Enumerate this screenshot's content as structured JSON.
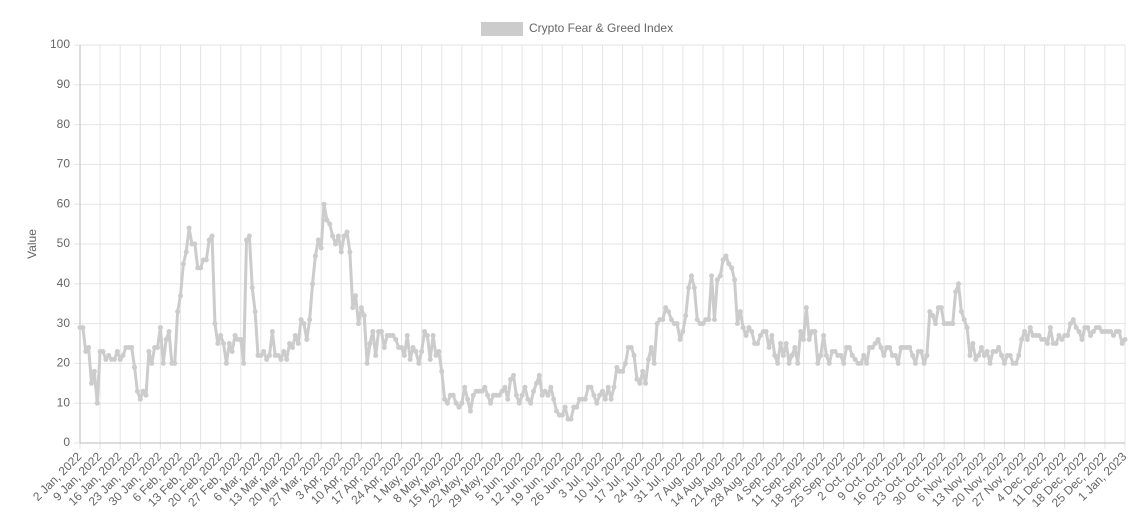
{
  "chart_data": {
    "type": "line",
    "y_label": "Value",
    "categories": [
      "2 Jan, 2022",
      null,
      null,
      null,
      null,
      null,
      null,
      "9 Jan, 2022",
      null,
      null,
      null,
      null,
      null,
      null,
      "16 Jan, 2022",
      null,
      null,
      null,
      null,
      null,
      null,
      "23 Jan, 2022",
      null,
      null,
      null,
      null,
      null,
      null,
      "30 Jan, 2022",
      null,
      null,
      null,
      null,
      null,
      null,
      "6 Feb, 2022",
      null,
      null,
      null,
      null,
      null,
      null,
      "13 Feb, 2022",
      null,
      null,
      null,
      null,
      null,
      null,
      "20 Feb, 2022",
      null,
      null,
      null,
      null,
      null,
      null,
      "27 Feb, 2022",
      null,
      null,
      null,
      null,
      null,
      null,
      "6 Mar, 2022",
      null,
      null,
      null,
      null,
      null,
      null,
      "13 Mar, 2022",
      null,
      null,
      null,
      null,
      null,
      null,
      "20 Mar, 2022",
      null,
      null,
      null,
      null,
      null,
      null,
      "27 Mar, 2022",
      null,
      null,
      null,
      null,
      null,
      null,
      "3 Apr, 2022",
      null,
      null,
      null,
      null,
      null,
      null,
      "10 Apr, 2022",
      null,
      null,
      null,
      null,
      null,
      null,
      "17 Apr, 2022",
      null,
      null,
      null,
      null,
      null,
      null,
      "24 Apr, 2022",
      null,
      null,
      null,
      null,
      null,
      null,
      "1 May, 2022",
      null,
      null,
      null,
      null,
      null,
      null,
      "8 May, 2022",
      null,
      null,
      null,
      null,
      null,
      null,
      "15 May, 2022",
      null,
      null,
      null,
      null,
      null,
      null,
      "22 May, 2022",
      null,
      null,
      null,
      null,
      null,
      null,
      "29 May, 2022",
      null,
      null,
      null,
      null,
      null,
      null,
      "5 Jun, 2022",
      null,
      null,
      null,
      null,
      null,
      null,
      "12 Jun, 2022",
      null,
      null,
      null,
      null,
      null,
      null,
      "19 Jun, 2022",
      null,
      null,
      null,
      null,
      null,
      null,
      "26 Jun, 2022",
      null,
      null,
      null,
      null,
      null,
      null,
      "3 Jul, 2022",
      null,
      null,
      null,
      null,
      null,
      null,
      "10 Jul, 2022",
      null,
      null,
      null,
      null,
      null,
      null,
      "17 Jul, 2022",
      null,
      null,
      null,
      null,
      null,
      null,
      "24 Jul, 2022",
      null,
      null,
      null,
      null,
      null,
      null,
      "31 Jul, 2022",
      null,
      null,
      null,
      null,
      null,
      null,
      "7 Aug, 2022",
      null,
      null,
      null,
      null,
      null,
      null,
      "14 Aug, 2022",
      null,
      null,
      null,
      null,
      null,
      null,
      "21 Aug, 2022",
      null,
      null,
      null,
      null,
      null,
      null,
      "28 Aug, 2022",
      null,
      null,
      null,
      null,
      null,
      null,
      "4 Sep, 2022",
      null,
      null,
      null,
      null,
      null,
      null,
      "11 Sep, 2022",
      null,
      null,
      null,
      null,
      null,
      null,
      "18 Sep, 2022",
      null,
      null,
      null,
      null,
      null,
      null,
      "25 Sep, 2022",
      null,
      null,
      null,
      null,
      null,
      null,
      "2 Oct, 2022",
      null,
      null,
      null,
      null,
      null,
      null,
      "9 Oct, 2022",
      null,
      null,
      null,
      null,
      null,
      null,
      "16 Oct, 2022",
      null,
      null,
      null,
      null,
      null,
      null,
      "23 Oct, 2022",
      null,
      null,
      null,
      null,
      null,
      null,
      "30 Oct, 2022",
      null,
      null,
      null,
      null,
      null,
      null,
      "6 Nov, 2022",
      null,
      null,
      null,
      null,
      null,
      null,
      "13 Nov, 2022",
      null,
      null,
      null,
      null,
      null,
      null,
      "20 Nov, 2022",
      null,
      null,
      null,
      null,
      null,
      null,
      "27 Nov, 2022",
      null,
      null,
      null,
      null,
      null,
      null,
      "4 Dec, 2022",
      null,
      null,
      null,
      null,
      null,
      null,
      "11 Dec, 2022",
      null,
      null,
      null,
      null,
      null,
      null,
      "18 Dec, 2022",
      null,
      null,
      null,
      null,
      null,
      null,
      "25 Dec, 2022",
      null,
      null,
      null,
      null,
      null,
      null,
      "1 Jan, 2023"
    ],
    "series": [
      {
        "name": "Crypto Fear & Greed Index",
        "color": "#cccccc",
        "values": [
          29,
          29,
          23,
          24,
          15,
          18,
          10,
          23,
          23,
          21,
          22,
          21,
          21,
          23,
          21,
          22,
          24,
          24,
          24,
          19,
          13,
          11,
          13,
          12,
          23,
          20,
          24,
          24,
          29,
          20,
          26,
          28,
          20,
          20,
          33,
          37,
          45,
          48,
          54,
          50,
          50,
          44,
          44,
          46,
          46,
          51,
          52,
          30,
          25,
          27,
          25,
          20,
          25,
          23,
          27,
          26,
          26,
          20,
          51,
          52,
          39,
          33,
          22,
          22,
          23,
          21,
          22,
          28,
          22,
          22,
          21,
          23,
          21,
          25,
          24,
          27,
          25,
          31,
          30,
          26,
          31,
          40,
          47,
          51,
          49,
          60,
          56,
          55,
          52,
          50,
          52,
          48,
          52,
          53,
          48,
          34,
          37,
          30,
          34,
          32,
          20,
          25,
          28,
          22,
          28,
          28,
          24,
          27,
          27,
          27,
          26,
          24,
          24,
          22,
          27,
          21,
          24,
          23,
          20,
          23,
          28,
          27,
          21,
          27,
          22,
          23,
          18,
          11,
          10,
          12,
          12,
          10,
          9,
          10,
          14,
          11,
          8,
          12,
          13,
          13,
          13,
          14,
          12,
          10,
          12,
          12,
          12,
          13,
          14,
          11,
          16,
          17,
          12,
          10,
          12,
          14,
          11,
          10,
          13,
          15,
          17,
          12,
          13,
          12,
          14,
          11,
          8,
          7,
          7,
          9,
          6,
          6,
          9,
          9,
          11,
          11,
          11,
          14,
          14,
          12,
          10,
          12,
          13,
          11,
          14,
          11,
          14,
          19,
          18,
          18,
          20,
          24,
          24,
          22,
          16,
          15,
          18,
          15,
          21,
          24,
          20,
          30,
          31,
          31,
          34,
          33,
          31,
          30,
          30,
          26,
          28,
          32,
          39,
          42,
          39,
          31,
          30,
          30,
          31,
          31,
          42,
          31,
          41,
          42,
          46,
          47,
          45,
          44,
          41,
          30,
          33,
          29,
          27,
          29,
          28,
          25,
          25,
          27,
          28,
          28,
          24,
          27,
          22,
          20,
          25,
          22,
          25,
          20,
          22,
          24,
          20,
          28,
          26,
          34,
          26,
          28,
          28,
          20,
          22,
          27,
          22,
          20,
          23,
          23,
          22,
          22,
          20,
          24,
          24,
          22,
          21,
          20,
          20,
          22,
          20,
          24,
          24,
          25,
          26,
          24,
          22,
          24,
          24,
          22,
          22,
          20,
          24,
          24,
          24,
          24,
          22,
          20,
          23,
          23,
          20,
          22,
          33,
          32,
          30,
          34,
          34,
          30,
          30,
          30,
          30,
          38,
          40,
          33,
          31,
          29,
          22,
          25,
          21,
          22,
          24,
          22,
          23,
          20,
          23,
          23,
          24,
          22,
          20,
          22,
          22,
          20,
          20,
          22,
          26,
          28,
          26,
          29,
          27,
          27,
          27,
          26,
          26,
          25,
          29,
          25,
          25,
          27,
          26,
          27,
          27,
          30,
          31,
          29,
          28,
          26,
          29,
          29,
          27,
          28,
          29,
          29,
          28,
          28,
          28,
          28,
          27,
          28,
          28,
          25,
          26
        ]
      }
    ],
    "ylim": [
      0,
      100
    ],
    "yticks": [
      0,
      10,
      20,
      30,
      40,
      50,
      60,
      70,
      80,
      90,
      100
    ],
    "grid": true,
    "legend": "top"
  }
}
